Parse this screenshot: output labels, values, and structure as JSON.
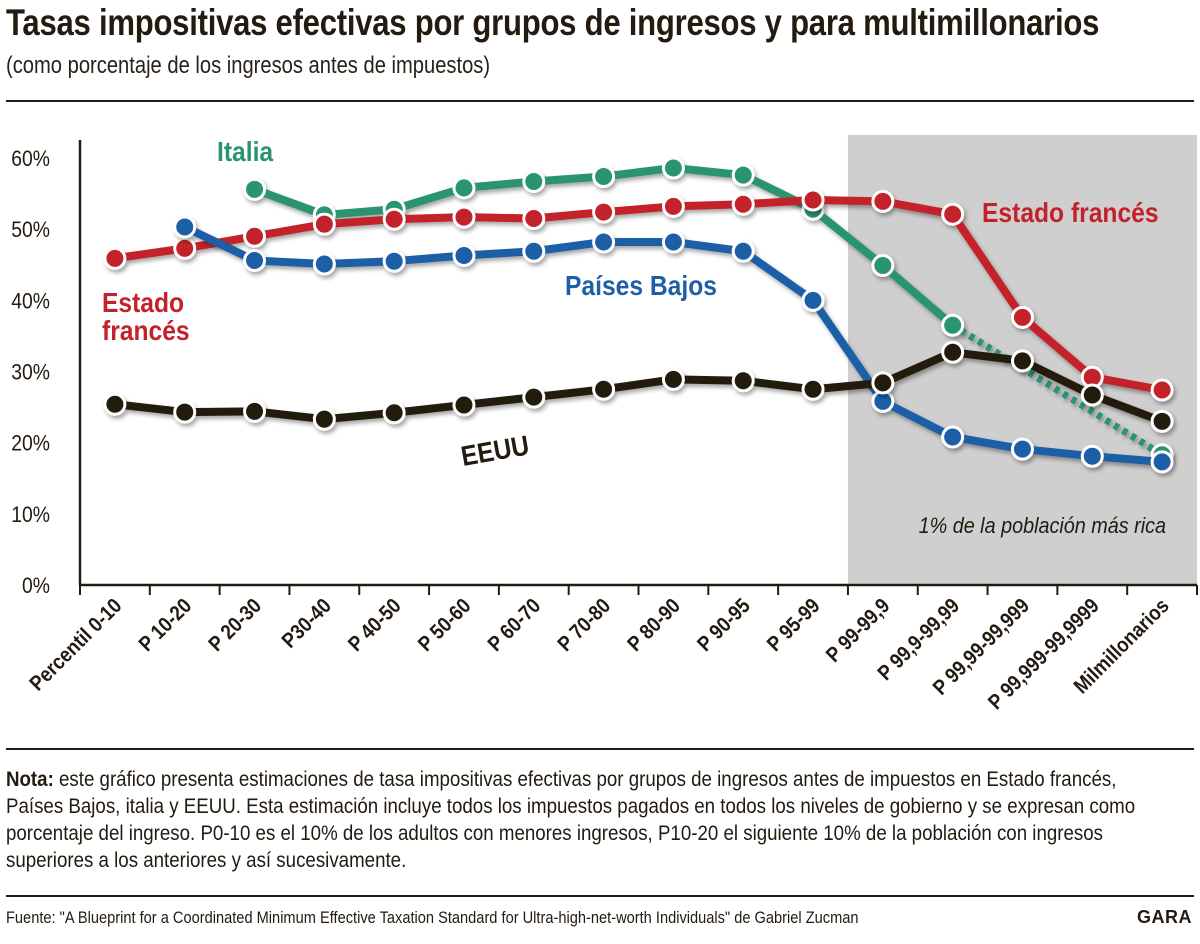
{
  "header": {
    "title": "Tasas impositivas efectivas por grupos de ingresos y para multimillonarios",
    "subtitle": "(como porcentaje de los ingresos antes de impuestos)"
  },
  "chart_data": {
    "type": "line",
    "title": "Tasas impositivas efectivas por grupos de ingresos y para multimillonarios",
    "ylabel": "% de los ingresos antes de impuestos",
    "xlabel": "",
    "ylim": [
      0,
      60
    ],
    "yticks": [
      "0%",
      "10%",
      "20%",
      "30%",
      "40%",
      "50%",
      "60%"
    ],
    "categories": [
      "Percentil 0-10",
      "P 10-20",
      "P 20-30",
      "P30-40",
      "P 40-50",
      "P 50-60",
      "P 60-70",
      "P 70-80",
      "P 80-90",
      "P 90-95",
      "P 95-99",
      "P 99-99,9",
      "P 99,9-99,99",
      "P 99,99-99,999",
      "P 99,999-99,9999",
      "Milmillonarios"
    ],
    "shaded_region": {
      "from": "P 99-99,9",
      "to": "Milmillonarios",
      "label": "1% de la población más rica"
    },
    "series": [
      {
        "name": "Italia",
        "label": "Italia",
        "color": "#2a9470",
        "values": [
          null,
          null,
          55.6,
          52.0,
          52.8,
          55.8,
          56.7,
          57.4,
          58.6,
          57.6,
          52.8,
          44.9,
          36.5,
          null,
          null,
          18.3
        ],
        "dotted_from": "P 99,9-99,99"
      },
      {
        "name": "Estado francés",
        "label": "Estado francés",
        "color": "#c4222a",
        "values": [
          45.9,
          47.3,
          49.0,
          50.7,
          51.4,
          51.7,
          51.5,
          52.4,
          53.2,
          53.5,
          54.1,
          53.9,
          52.1,
          37.6,
          29.2,
          27.4
        ]
      },
      {
        "name": "Países Bajos",
        "label": "Países Bajos",
        "color": "#1f5fa6",
        "values": [
          null,
          50.3,
          45.6,
          45.1,
          45.5,
          46.3,
          46.9,
          48.2,
          48.2,
          46.9,
          40.0,
          25.8,
          20.8,
          19.1,
          18.1,
          17.3
        ]
      },
      {
        "name": "EEUU",
        "label": "EEUU",
        "color": "#231a10",
        "values": [
          25.4,
          24.3,
          24.4,
          23.3,
          24.2,
          25.3,
          26.4,
          27.5,
          28.9,
          28.7,
          27.5,
          28.4,
          32.7,
          31.5,
          26.7,
          23.0
        ]
      }
    ],
    "annotations": {
      "france_left": "Estado",
      "france_left2": "francés"
    }
  },
  "note": {
    "label": "Nota:",
    "text": " este gráfico presenta estimaciones de tasa impositivas efectivas por grupos de ingresos antes de impuestos en Estado francés, Países Bajos, italia y EEUU. Esta estimación incluye todos los impuestos pagados en todos los niveles de gobierno y se expresan como porcentaje del ingreso. P0-10 es el 10% de los adultos con menores ingresos, P10-20 el siguiente 10% de la población con ingresos superiores a los anteriores y así sucesivamente."
  },
  "footer": {
    "source": "Fuente: \"A Blueprint for a Coordinated Minimum Effective Taxation Standard for Ultra-high-net-worth Individuals\" de Gabriel Zucman",
    "brand": "GARA"
  }
}
